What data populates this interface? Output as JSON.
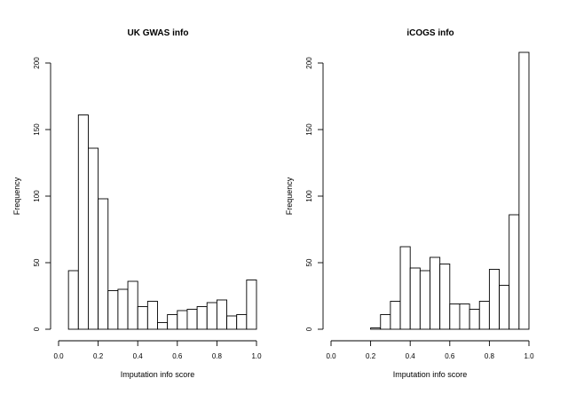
{
  "chart_data": [
    {
      "type": "bar",
      "title": "UK GWAS info",
      "xlabel": "Imputation info score",
      "ylabel": "Frequency",
      "bin_width": 0.05,
      "xlim": [
        0.0,
        1.0
      ],
      "ylim": [
        0,
        200
      ],
      "xticks": [
        "0.0",
        "0.2",
        "0.4",
        "0.6",
        "0.8",
        "1.0"
      ],
      "yticks": [
        "0",
        "50",
        "100",
        "150",
        "200"
      ],
      "bins": [
        {
          "start": 0.05,
          "end": 0.1,
          "value": 44
        },
        {
          "start": 0.1,
          "end": 0.15,
          "value": 161
        },
        {
          "start": 0.15,
          "end": 0.2,
          "value": 136
        },
        {
          "start": 0.2,
          "end": 0.25,
          "value": 98
        },
        {
          "start": 0.25,
          "end": 0.3,
          "value": 29
        },
        {
          "start": 0.3,
          "end": 0.35,
          "value": 30
        },
        {
          "start": 0.35,
          "end": 0.4,
          "value": 36
        },
        {
          "start": 0.4,
          "end": 0.45,
          "value": 17
        },
        {
          "start": 0.45,
          "end": 0.5,
          "value": 21
        },
        {
          "start": 0.5,
          "end": 0.55,
          "value": 5
        },
        {
          "start": 0.55,
          "end": 0.6,
          "value": 11
        },
        {
          "start": 0.6,
          "end": 0.65,
          "value": 14
        },
        {
          "start": 0.65,
          "end": 0.7,
          "value": 15
        },
        {
          "start": 0.7,
          "end": 0.75,
          "value": 17
        },
        {
          "start": 0.75,
          "end": 0.8,
          "value": 20
        },
        {
          "start": 0.8,
          "end": 0.85,
          "value": 22
        },
        {
          "start": 0.85,
          "end": 0.9,
          "value": 10
        },
        {
          "start": 0.9,
          "end": 0.95,
          "value": 11
        },
        {
          "start": 0.95,
          "end": 1.0,
          "value": 37
        }
      ]
    },
    {
      "type": "bar",
      "title": "iCOGS info",
      "xlabel": "Imputation info score",
      "ylabel": "Frequency",
      "bin_width": 0.05,
      "xlim": [
        0.0,
        1.0
      ],
      "ylim": [
        0,
        200
      ],
      "xticks": [
        "0.0",
        "0.2",
        "0.4",
        "0.6",
        "0.8",
        "1.0"
      ],
      "yticks": [
        "0",
        "50",
        "100",
        "150",
        "200"
      ],
      "bins": [
        {
          "start": 0.2,
          "end": 0.25,
          "value": 1
        },
        {
          "start": 0.25,
          "end": 0.3,
          "value": 11
        },
        {
          "start": 0.3,
          "end": 0.35,
          "value": 21
        },
        {
          "start": 0.35,
          "end": 0.4,
          "value": 62
        },
        {
          "start": 0.4,
          "end": 0.45,
          "value": 46
        },
        {
          "start": 0.45,
          "end": 0.5,
          "value": 44
        },
        {
          "start": 0.5,
          "end": 0.55,
          "value": 54
        },
        {
          "start": 0.55,
          "end": 0.6,
          "value": 49
        },
        {
          "start": 0.6,
          "end": 0.65,
          "value": 19
        },
        {
          "start": 0.65,
          "end": 0.7,
          "value": 19
        },
        {
          "start": 0.7,
          "end": 0.75,
          "value": 15
        },
        {
          "start": 0.75,
          "end": 0.8,
          "value": 21
        },
        {
          "start": 0.8,
          "end": 0.85,
          "value": 45
        },
        {
          "start": 0.85,
          "end": 0.9,
          "value": 33
        },
        {
          "start": 0.9,
          "end": 0.95,
          "value": 86
        },
        {
          "start": 0.95,
          "end": 1.0,
          "value": 208
        }
      ]
    }
  ]
}
